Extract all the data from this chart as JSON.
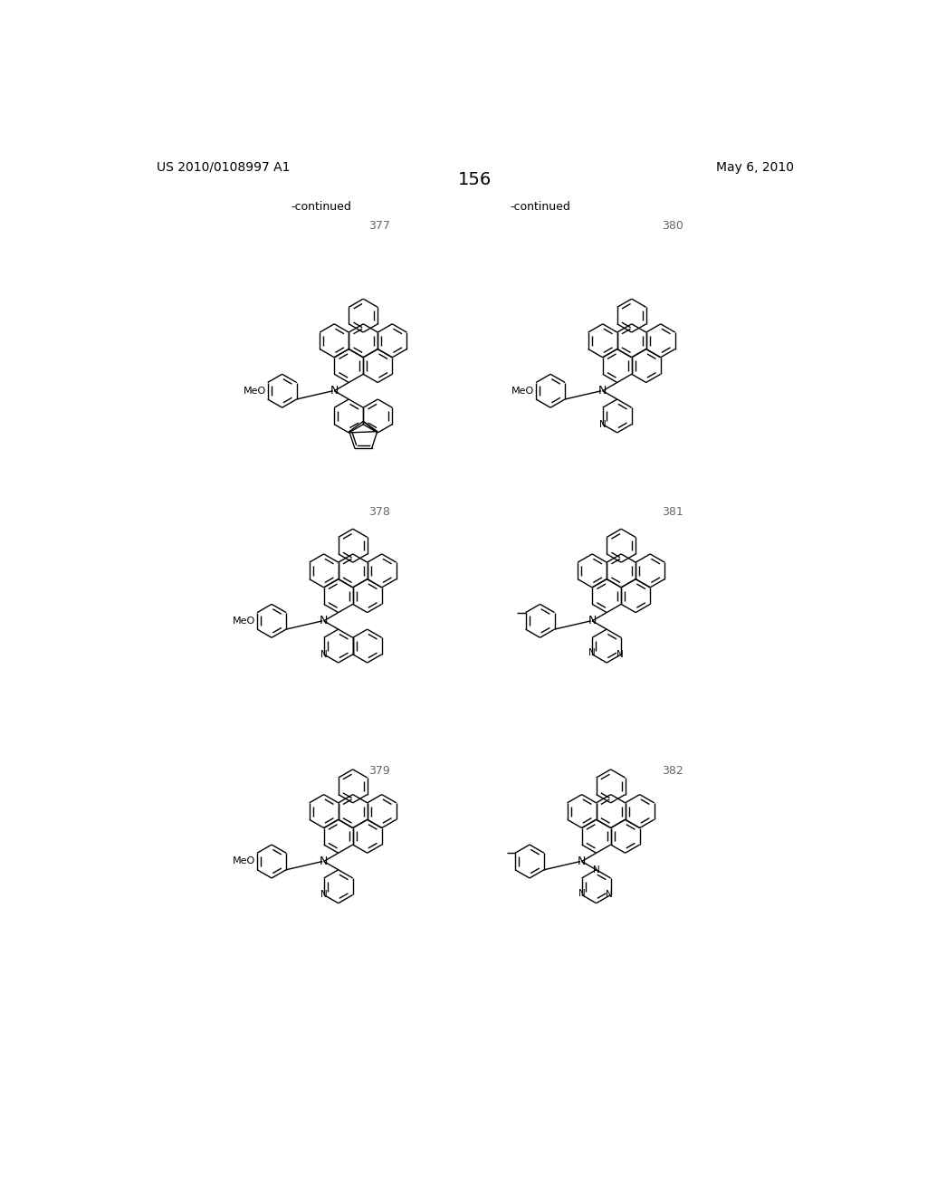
{
  "page_header_left": "US 2010/0108997 A1",
  "page_header_right": "May 6, 2010",
  "page_number": "156",
  "background_color": "#ffffff"
}
